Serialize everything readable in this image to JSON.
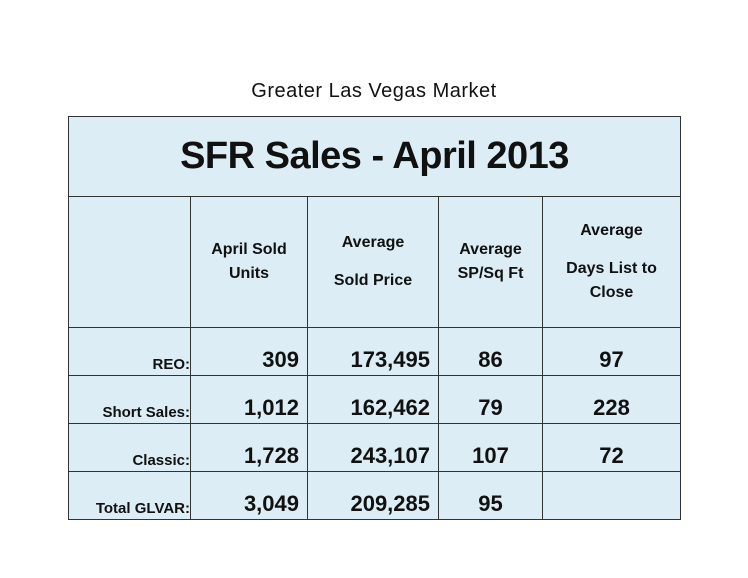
{
  "subtitle": "Greater Las Vegas Market",
  "title": "SFR Sales - April 2013",
  "columns": [
    {
      "line1": "April Sold",
      "line2": "Units"
    },
    {
      "line1": "Average",
      "line2": "Sold Price"
    },
    {
      "line1": "Average",
      "line2": "SP/Sq Ft"
    },
    {
      "line1": "Average",
      "line2": "Days List to",
      "line3": "Close"
    }
  ],
  "rows": [
    {
      "label": "REO:",
      "units": "309",
      "price": "173,495",
      "sqft": "86",
      "days": "97"
    },
    {
      "label": "Short Sales:",
      "units": "1,012",
      "price": "162,462",
      "sqft": "79",
      "days": "228"
    },
    {
      "label": "Classic:",
      "units": "1,728",
      "price": "243,107",
      "sqft": "107",
      "days": "72"
    },
    {
      "label": "Total GLVAR:",
      "units": "3,049",
      "price": "209,285",
      "sqft": "95",
      "days": ""
    }
  ],
  "colors": {
    "table_background": "#dcedf6",
    "border": "#333333"
  }
}
